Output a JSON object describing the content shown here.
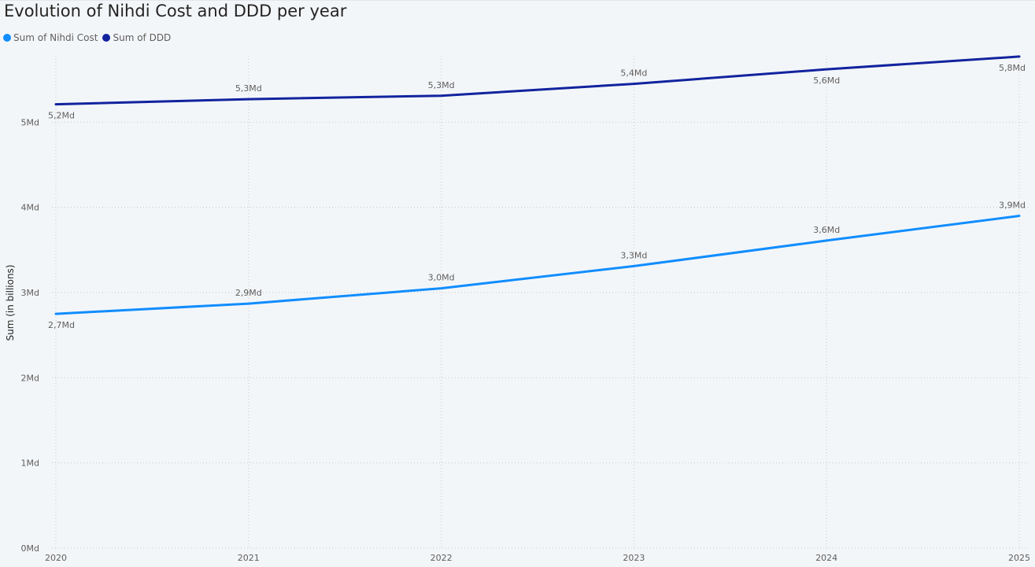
{
  "chart_data": {
    "type": "line",
    "title": "Evolution of Nihdi Cost and DDD per year",
    "xlabel": "",
    "ylabel": "Sum (in billions)",
    "x": [
      "2020",
      "2021",
      "2022",
      "2023",
      "2024",
      "2025"
    ],
    "ylim": [
      0,
      6
    ],
    "yticks": [
      0,
      1,
      2,
      3,
      4,
      5
    ],
    "ytick_labels": [
      "0Md",
      "1Md",
      "2Md",
      "3Md",
      "4Md",
      "5Md"
    ],
    "grid": true,
    "legend_position": "top-left",
    "series": [
      {
        "name": "Sum of Nihdi Cost",
        "color": "#118dff",
        "values": [
          2.75,
          2.87,
          3.05,
          3.31,
          3.61,
          3.9
        ],
        "labels": [
          "2,7Md",
          "2,9Md",
          "3,0Md",
          "3,3Md",
          "3,6Md",
          "3,9Md"
        ],
        "label_side": [
          "below",
          "above",
          "above",
          "above",
          "above",
          "above"
        ]
      },
      {
        "name": "Sum of DDD",
        "color": "#12239e",
        "values": [
          5.21,
          5.27,
          5.31,
          5.45,
          5.62,
          5.77
        ],
        "labels": [
          "5,2Md",
          "5,3Md",
          "5,3Md",
          "5,4Md",
          "5,6Md",
          "5,8Md"
        ],
        "label_side": [
          "below",
          "above",
          "above",
          "above",
          "below",
          "below"
        ]
      }
    ]
  }
}
